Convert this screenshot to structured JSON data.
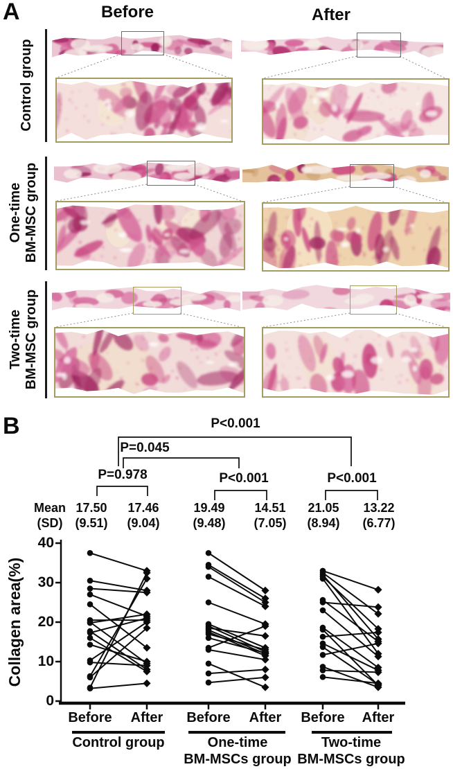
{
  "panelA": {
    "label": "A",
    "column_headers": [
      "Before",
      "After"
    ],
    "rows": [
      {
        "group_label_lines": [
          "Control group"
        ]
      },
      {
        "group_label_lines": [
          "One-time",
          "BM-MSC group"
        ]
      },
      {
        "group_label_lines": [
          "Two-time",
          "BM-MSC group"
        ]
      }
    ],
    "stain_description": "picrosirius-red stained tissue strips with magnified inset regions"
  },
  "panelB": {
    "label": "B",
    "ylabel": "Collagen area(%)",
    "yticks": [
      "0",
      "10",
      "20",
      "30",
      "40"
    ],
    "mean_header_line1": "Mean",
    "mean_header_line2": "(SD)",
    "pvalues": {
      "overall": "P<0.001",
      "control_vs_onetime": "P=0.045",
      "control_within": "P=0.978",
      "onetime_within": "P<0.001",
      "twotime_within": "P<0.001"
    },
    "mean_columns": [
      {
        "mean": "17.50",
        "sd": "(9.51)"
      },
      {
        "mean": "17.46",
        "sd": "(9.04)"
      },
      {
        "mean": "19.49",
        "sd": "(9.48)"
      },
      {
        "mean": "14.51",
        "sd": "(7.05)"
      },
      {
        "mean": "21.05",
        "sd": "(8.94)"
      },
      {
        "mean": "13.22",
        "sd": "(6.77)"
      }
    ],
    "xtick_labels": [
      "Before",
      "After",
      "Before",
      "After",
      "Before",
      "After"
    ],
    "group_labels": [
      {
        "line1": "Control group",
        "line2": ""
      },
      {
        "line1": "One-time",
        "line2": "BM-MSCs group"
      },
      {
        "line1": "Two-time",
        "line2": "BM-MSCs group"
      }
    ]
  },
  "palette": {
    "stain_magenta": "#c9417e",
    "stain_deep": "#a02360",
    "stain_light": "#d6679b",
    "stain_pale_base": "#f4e0dc",
    "stain_nodule": "#f3e5d3",
    "stain_tan": "#eed3ae",
    "inset_border_olive": "#a39b5f",
    "ink": "#0b0b0b"
  },
  "chart_data": {
    "type": "scatter",
    "subtype": "paired-line-plot",
    "ylabel": "Collagen area(%)",
    "ylim": [
      0,
      40
    ],
    "yticks": [
      0,
      10,
      20,
      30,
      40
    ],
    "grid": false,
    "conditions": [
      "Before",
      "After"
    ],
    "markers": {
      "Before": "filled-circle",
      "After": "filled-diamond"
    },
    "groups": [
      {
        "name": "Control group",
        "before_mean": 17.5,
        "before_sd": 9.51,
        "after_mean": 17.46,
        "after_sd": 9.04,
        "within_p": "P=0.978",
        "pairs": [
          [
            37.5,
            33
          ],
          [
            30.5,
            28
          ],
          [
            28.5,
            27.5
          ],
          [
            27,
            21.5
          ],
          [
            24.5,
            13.5
          ],
          [
            20.5,
            20.5
          ],
          [
            20,
            9.5
          ],
          [
            19.8,
            22
          ],
          [
            17.7,
            8
          ],
          [
            17.3,
            21
          ],
          [
            16,
            7.5
          ],
          [
            14.3,
            10
          ],
          [
            10.3,
            20
          ],
          [
            9.8,
            9
          ],
          [
            6.3,
            31
          ],
          [
            6,
            18.5
          ],
          [
            3.4,
            32.5
          ],
          [
            3.2,
            4.5
          ]
        ]
      },
      {
        "name": "One-time BM-MSCs group",
        "before_mean": 19.49,
        "before_sd": 9.48,
        "after_mean": 14.51,
        "after_sd": 7.05,
        "within_p": "P<0.001",
        "pairs": [
          [
            37.5,
            28
          ],
          [
            34.5,
            26
          ],
          [
            34,
            25
          ],
          [
            31.5,
            24
          ],
          [
            25,
            19.5
          ],
          [
            19.5,
            13.5
          ],
          [
            19,
            12.5
          ],
          [
            18.5,
            16.5
          ],
          [
            18,
            12
          ],
          [
            17.5,
            11.5
          ],
          [
            17,
            13
          ],
          [
            16,
            12.2
          ],
          [
            13.5,
            19
          ],
          [
            13,
            10.5
          ],
          [
            9.5,
            3.5
          ],
          [
            7,
            8
          ],
          [
            4.7,
            6
          ]
        ]
      },
      {
        "name": "Two-time BM-MSCs group",
        "before_mean": 21.05,
        "before_sd": 8.94,
        "after_mean": 13.22,
        "after_sd": 6.77,
        "within_p": "P<0.001",
        "pairs": [
          [
            33,
            28.2
          ],
          [
            32.5,
            22.1
          ],
          [
            32,
            15.7
          ],
          [
            31.5,
            18.3
          ],
          [
            31,
            12
          ],
          [
            25.6,
            15.1
          ],
          [
            25,
            23.8
          ],
          [
            23,
            11.3
          ],
          [
            18.6,
            8.5
          ],
          [
            18.1,
            4
          ],
          [
            16.3,
            17.4
          ],
          [
            14.6,
            7.8
          ],
          [
            13.7,
            4.2
          ],
          [
            11.7,
            14.6
          ],
          [
            8.7,
            3.5
          ],
          [
            7.8,
            7.3
          ],
          [
            6.1,
            4.5
          ]
        ]
      }
    ],
    "comparisons": [
      {
        "between": [
          "Control group",
          "Two-time BM-MSCs group"
        ],
        "p": "P<0.001"
      },
      {
        "between": [
          "Control group",
          "One-time BM-MSCs group"
        ],
        "p": "P=0.045"
      }
    ]
  }
}
